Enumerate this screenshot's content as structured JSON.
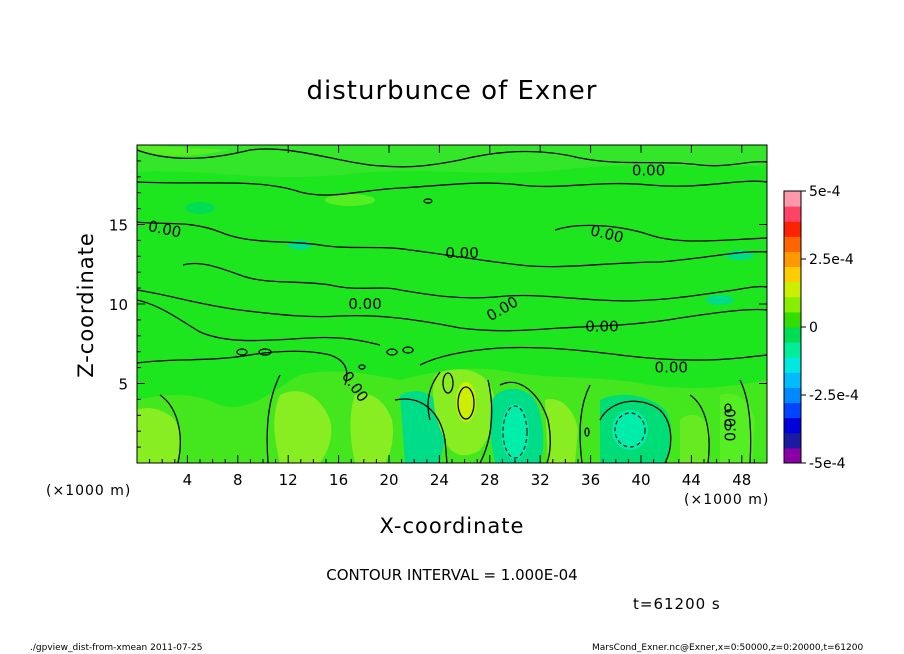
{
  "chart_data": {
    "type": "contour",
    "title": "disturbunce of Exner",
    "xlabel": "X-coordinate",
    "ylabel": "Z-coordinate",
    "x_unit": "(×1000 m)",
    "y_unit": "(×1000 m)",
    "xlim": [
      0,
      50
    ],
    "ylim": [
      0,
      20
    ],
    "xticks": [
      4,
      8,
      12,
      16,
      20,
      24,
      28,
      32,
      36,
      40,
      44,
      48
    ],
    "yticks": [
      5,
      10,
      15
    ],
    "contour_interval_text": "CONTOUR INTERVAL = 1.000E-04",
    "contour_label": "0.00",
    "colorbar": {
      "min": -0.0005,
      "max": 0.0005,
      "tick_labels": [
        "5e-4",
        "2.5e-4",
        "0",
        "-2.5e-4",
        "-5e-4"
      ],
      "colors": [
        "#8b00a6",
        "#1a1aa3",
        "#0000dd",
        "#0044ff",
        "#0088ff",
        "#00bbff",
        "#00e8e0",
        "#00ee99",
        "#00dd55",
        "#33dd00",
        "#88ee00",
        "#ccee00",
        "#ffcc00",
        "#ff9900",
        "#ff6600",
        "#ff2200",
        "#ff4466",
        "#ff99aa"
      ]
    },
    "features": [
      {
        "label": "negative minimum",
        "x": 29.8,
        "z": 2.4,
        "value": -0.0001
      },
      {
        "label": "negative minimum",
        "x": 38.8,
        "z": 2.2,
        "value": -0.0001
      },
      {
        "label": "positive maximum",
        "x": 25.8,
        "z": 4.0,
        "value": 0.0001
      }
    ]
  },
  "time_label": "t=61200 s",
  "footer_left": "./gpview_dist-from-xmean  2011-07-25",
  "footer_right": "MarsCond_Exner.nc@Exner,x=0:50000,z=0:20000,t=61200"
}
